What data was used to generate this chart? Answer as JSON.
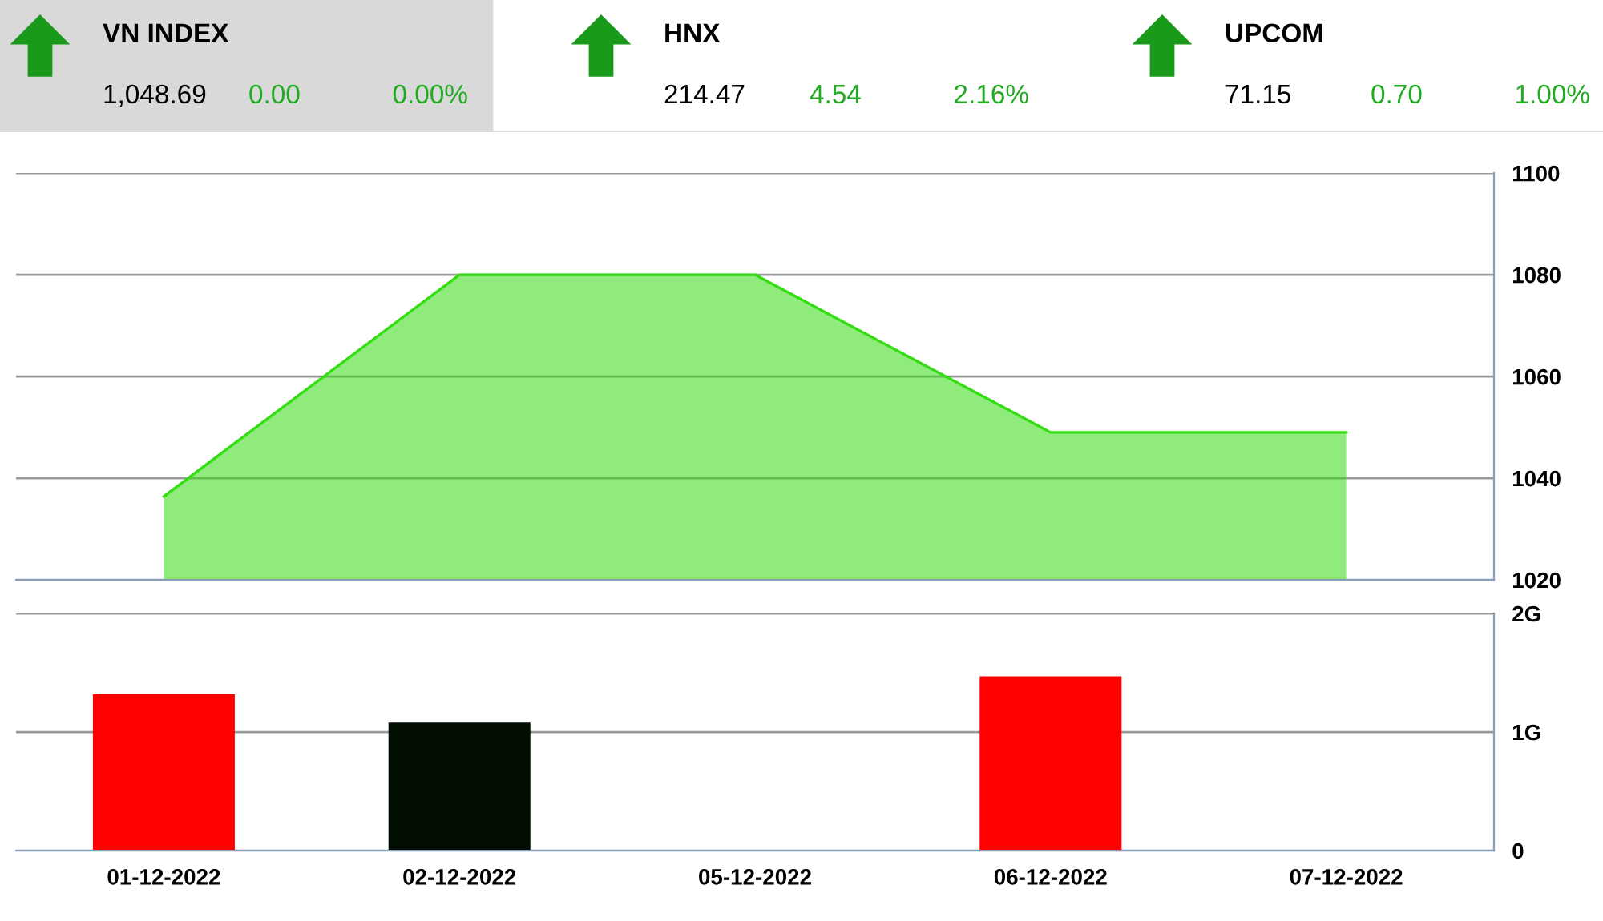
{
  "chart_data": [
    {
      "type": "other",
      "annotations": [
        "VN INDEX",
        "1,048.69",
        "0.00",
        "0.00%",
        "HNX",
        "214.47",
        "4.54",
        "2.16%",
        "UPCOM",
        "71.15",
        "0.70",
        "1.00%"
      ]
    },
    {
      "type": "area",
      "categories": [
        null,
        null,
        null,
        null,
        null
      ],
      "tick_labels": "y",
      "series": [
        {
          "color": "#33dd11",
          "values": [
            1036.4,
            1080,
            1080,
            1049,
            1049
          ]
        }
      ],
      "ylim": [
        1020,
        1100
      ],
      "yticks": [
        1020,
        1040,
        1060,
        1080,
        1100
      ],
      "grid": "y"
    },
    {
      "type": "bar",
      "categories": [
        "01-12-2022",
        "02-12-2022",
        "05-12-2022",
        "06-12-2022",
        "07-12-2022"
      ],
      "values": [
        1.32,
        1.08,
        null,
        1.47,
        null
      ],
      "colors": [
        "#ff0000",
        "#000d00",
        "#ff0000",
        "#ff0000",
        "#ff0000"
      ],
      "ylim": [
        0,
        2
      ],
      "yticks": [
        0,
        {
          "value": 1,
          "label": "1G"
        },
        {
          "value": 2,
          "label": "2G"
        }
      ],
      "grid": "y"
    }
  ]
}
